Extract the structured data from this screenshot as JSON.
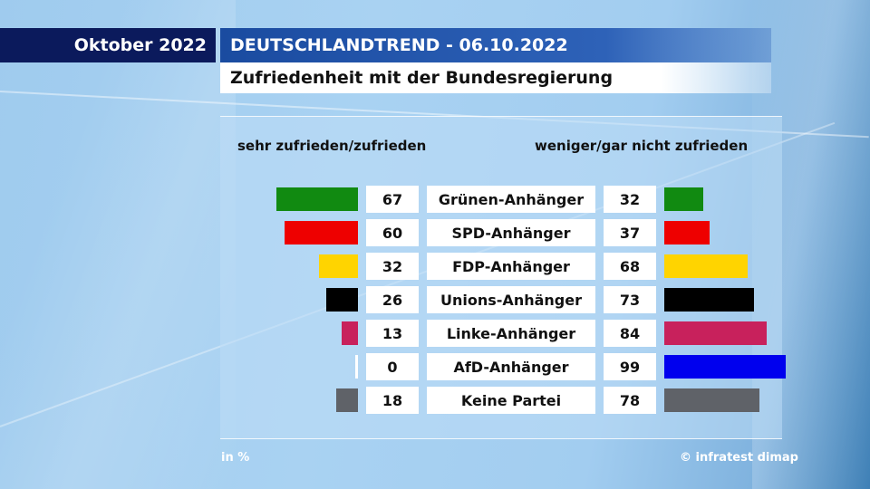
{
  "header": {
    "month": "Oktober 2022",
    "trend": "DEUTSCHLANDTREND - 06.10.2022",
    "title": "Zufriedenheit mit der Bundesregierung"
  },
  "chart_data": {
    "type": "bar",
    "title": "Zufriedenheit mit der Bundesregierung",
    "categories": [
      "Grünen-Anhänger",
      "SPD-Anhänger",
      "FDP-Anhänger",
      "Unions-Anhänger",
      "Linke-Anhänger",
      "AfD-Anhänger",
      "Keine Partei"
    ],
    "colors": [
      "#118a11",
      "#ee0000",
      "#ffd400",
      "#000000",
      "#c8215c",
      "#0000ee",
      "#5f6268"
    ],
    "series": [
      {
        "name": "sehr zufrieden/zufrieden",
        "values": [
          67,
          60,
          32,
          26,
          13,
          0,
          18
        ]
      },
      {
        "name": "weniger/gar nicht zufrieden",
        "values": [
          32,
          37,
          68,
          73,
          84,
          99,
          78
        ]
      }
    ],
    "unit": "in %",
    "xlim": [
      0,
      100
    ]
  },
  "footer": {
    "unit": "in %",
    "source": "© infratest dimap"
  }
}
